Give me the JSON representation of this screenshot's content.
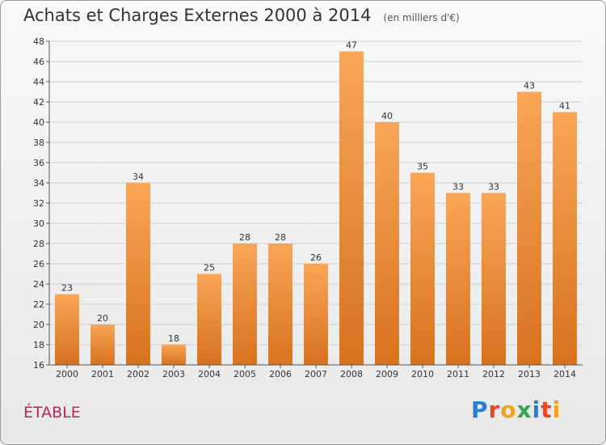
{
  "title": "Achats et Charges Externes 2000 à 2014",
  "unit": "(en milliers d'€)",
  "place": "ÉTABLE",
  "logo": {
    "text": "Proxiti",
    "letter_colors": [
      "#2a7fd4",
      "#e8462a",
      "#f2a21a",
      "#2fa84f",
      "#2a7fd4",
      "#e8462a",
      "#f2a21a"
    ]
  },
  "colors": {
    "bar_light": "#f8a656",
    "bar_dark": "#d8711e",
    "grid": "#cfcfcf",
    "axis": "#555555"
  },
  "chart_data": {
    "type": "bar",
    "title": "Achats et Charges Externes 2000 à 2014",
    "xlabel": "",
    "ylabel": "",
    "categories": [
      "2000",
      "2001",
      "2002",
      "2003",
      "2004",
      "2005",
      "2006",
      "2007",
      "2008",
      "2009",
      "2010",
      "2011",
      "2012",
      "2013",
      "2014"
    ],
    "values": [
      23,
      20,
      34,
      18,
      25,
      28,
      28,
      26,
      47,
      40,
      35,
      33,
      33,
      43,
      41
    ],
    "ylim": [
      16,
      48
    ],
    "yticks": [
      16,
      18,
      20,
      22,
      24,
      26,
      28,
      30,
      32,
      34,
      36,
      38,
      40,
      42,
      44,
      46,
      48
    ],
    "grid": true
  }
}
